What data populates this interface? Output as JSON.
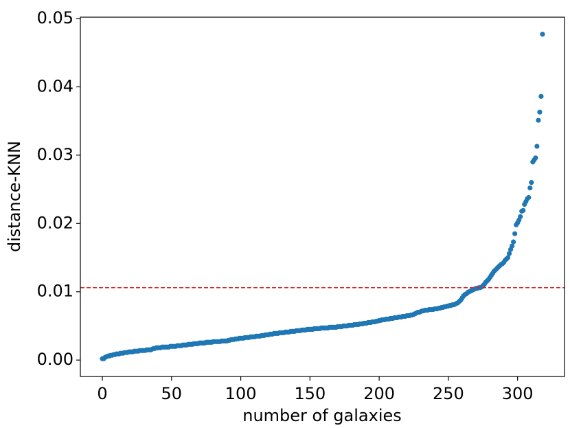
{
  "chart_data": {
    "type": "scatter",
    "xlabel": "number of galaxies",
    "ylabel": "distance-KNN",
    "xlim": [
      -15.9,
      333.9
    ],
    "ylim": [
      -0.0024,
      0.0502
    ],
    "xticks": [
      0,
      50,
      100,
      150,
      200,
      250,
      300
    ],
    "yticks": [
      {
        "value": 0,
        "label": "0.00"
      },
      0.01,
      0.02,
      0.03,
      0.04,
      0.05
    ],
    "hline": {
      "value": 0.0106,
      "color": "#d62728",
      "style": "dashed"
    },
    "series": [
      {
        "color": "#1f77b4",
        "x": [
          0,
          1,
          2,
          3,
          4,
          5,
          6,
          7,
          8,
          9,
          10,
          11,
          12,
          13,
          14,
          15,
          16,
          17,
          18,
          19,
          20,
          21,
          22,
          23,
          24,
          25,
          26,
          27,
          28,
          29,
          30,
          31,
          32,
          33,
          34,
          35,
          36,
          37,
          38,
          39,
          40,
          41,
          42,
          43,
          44,
          45,
          46,
          47,
          48,
          49,
          50,
          51,
          52,
          53,
          54,
          55,
          56,
          57,
          58,
          59,
          60,
          61,
          62,
          63,
          64,
          65,
          66,
          67,
          68,
          69,
          70,
          71,
          72,
          73,
          74,
          75,
          76,
          77,
          78,
          79,
          80,
          81,
          82,
          83,
          84,
          85,
          86,
          87,
          88,
          89,
          90,
          91,
          92,
          93,
          94,
          95,
          96,
          97,
          98,
          99,
          100,
          101,
          102,
          103,
          104,
          105,
          106,
          107,
          108,
          109,
          110,
          111,
          112,
          113,
          114,
          115,
          116,
          117,
          118,
          119,
          120,
          121,
          122,
          123,
          124,
          125,
          126,
          127,
          128,
          129,
          130,
          131,
          132,
          133,
          134,
          135,
          136,
          137,
          138,
          139,
          140,
          141,
          142,
          143,
          144,
          145,
          146,
          147,
          148,
          149,
          150,
          151,
          152,
          153,
          154,
          155,
          156,
          157,
          158,
          159,
          160,
          161,
          162,
          163,
          164,
          165,
          166,
          167,
          168,
          169,
          170,
          171,
          172,
          173,
          174,
          175,
          176,
          177,
          178,
          179,
          180,
          181,
          182,
          183,
          184,
          185,
          186,
          187,
          188,
          189,
          190,
          191,
          192,
          193,
          194,
          195,
          196,
          197,
          198,
          199,
          200,
          201,
          202,
          203,
          204,
          205,
          206,
          207,
          208,
          209,
          210,
          211,
          212,
          213,
          214,
          215,
          216,
          217,
          218,
          219,
          220,
          221,
          222,
          223,
          224,
          225,
          226,
          227,
          228,
          229,
          230,
          231,
          232,
          233,
          234,
          235,
          236,
          237,
          238,
          239,
          240,
          241,
          242,
          243,
          244,
          245,
          246,
          247,
          248,
          249,
          250,
          251,
          252,
          253,
          254,
          255,
          256,
          257,
          258,
          259,
          260,
          261,
          262,
          263,
          264,
          265,
          266,
          267,
          268,
          269,
          270,
          271,
          272,
          273,
          274,
          275,
          276,
          277,
          278,
          279,
          280,
          281,
          282,
          283,
          284,
          285,
          286,
          287,
          288,
          289,
          290,
          291,
          292,
          293,
          294,
          295,
          296,
          297,
          298,
          299,
          300,
          301,
          302,
          303,
          304,
          305,
          306,
          307,
          308,
          309,
          310,
          311,
          312,
          313,
          314,
          315,
          316,
          317,
          318
        ],
        "values": [
          0.0002,
          0.0002,
          0.0004,
          0.0005,
          0.0006,
          0.0006,
          0.0007,
          0.0007,
          0.0008,
          0.0008,
          0.0009,
          0.0009,
          0.0009,
          0.001,
          0.001,
          0.001,
          0.0011,
          0.0011,
          0.0011,
          0.0012,
          0.0012,
          0.0012,
          0.0012,
          0.0013,
          0.0013,
          0.0013,
          0.0013,
          0.0014,
          0.0014,
          0.0014,
          0.0014,
          0.0014,
          0.0015,
          0.0015,
          0.0015,
          0.0015,
          0.0016,
          0.0017,
          0.0017,
          0.0018,
          0.0018,
          0.0018,
          0.0018,
          0.0019,
          0.0019,
          0.0019,
          0.0019,
          0.0019,
          0.0019,
          0.002,
          0.002,
          0.002,
          0.002,
          0.002,
          0.0021,
          0.0021,
          0.0021,
          0.0021,
          0.0022,
          0.0022,
          0.0022,
          0.0022,
          0.0023,
          0.0023,
          0.0023,
          0.0023,
          0.0024,
          0.0024,
          0.0024,
          0.0024,
          0.0025,
          0.0025,
          0.0025,
          0.0025,
          0.0025,
          0.0026,
          0.0026,
          0.0026,
          0.0026,
          0.0026,
          0.0027,
          0.0027,
          0.0027,
          0.0027,
          0.0027,
          0.0027,
          0.0028,
          0.0028,
          0.0028,
          0.0028,
          0.0028,
          0.0029,
          0.0029,
          0.003,
          0.003,
          0.003,
          0.0031,
          0.0031,
          0.0031,
          0.0032,
          0.0032,
          0.0032,
          0.0032,
          0.0033,
          0.0033,
          0.0033,
          0.0033,
          0.0034,
          0.0034,
          0.0034,
          0.0034,
          0.0035,
          0.0035,
          0.0035,
          0.0035,
          0.0036,
          0.0036,
          0.0036,
          0.0037,
          0.0037,
          0.0037,
          0.0038,
          0.0038,
          0.0038,
          0.0039,
          0.0039,
          0.0039,
          0.0039,
          0.004,
          0.004,
          0.004,
          0.004,
          0.0041,
          0.0041,
          0.0041,
          0.0041,
          0.0042,
          0.0042,
          0.0042,
          0.0042,
          0.0043,
          0.0043,
          0.0043,
          0.0043,
          0.0044,
          0.0044,
          0.0044,
          0.0044,
          0.0045,
          0.0045,
          0.0045,
          0.0045,
          0.0045,
          0.0046,
          0.0046,
          0.0046,
          0.0046,
          0.0046,
          0.0047,
          0.0047,
          0.0047,
          0.0047,
          0.0047,
          0.0047,
          0.0048,
          0.0048,
          0.0048,
          0.0048,
          0.0048,
          0.0048,
          0.0049,
          0.0049,
          0.0049,
          0.0049,
          0.005,
          0.005,
          0.005,
          0.005,
          0.0051,
          0.0051,
          0.0051,
          0.0051,
          0.0052,
          0.0052,
          0.0052,
          0.0052,
          0.0053,
          0.0053,
          0.0053,
          0.0054,
          0.0054,
          0.0054,
          0.0055,
          0.0055,
          0.0055,
          0.0056,
          0.0056,
          0.0056,
          0.0057,
          0.0057,
          0.0058,
          0.0058,
          0.0059,
          0.0059,
          0.0059,
          0.006,
          0.006,
          0.006,
          0.0061,
          0.0061,
          0.0061,
          0.0062,
          0.0062,
          0.0062,
          0.0063,
          0.0063,
          0.0063,
          0.0064,
          0.0064,
          0.0064,
          0.0065,
          0.0065,
          0.0065,
          0.0066,
          0.0066,
          0.0067,
          0.0068,
          0.0069,
          0.007,
          0.007,
          0.0071,
          0.0072,
          0.0072,
          0.0073,
          0.0073,
          0.0073,
          0.0074,
          0.0074,
          0.0074,
          0.0074,
          0.0075,
          0.0075,
          0.0075,
          0.0076,
          0.0076,
          0.0077,
          0.0077,
          0.0078,
          0.0078,
          0.0079,
          0.0079,
          0.008,
          0.008,
          0.0081,
          0.0081,
          0.0082,
          0.0083,
          0.0084,
          0.0086,
          0.0088,
          0.0091,
          0.0094,
          0.0096,
          0.0097,
          0.0099,
          0.01,
          0.0101,
          0.0102,
          0.0103,
          0.0104,
          0.0105,
          0.0105,
          0.0106,
          0.0106,
          0.0107,
          0.0109,
          0.0111,
          0.0114,
          0.0116,
          0.0118,
          0.0121,
          0.0124,
          0.0127,
          0.013,
          0.0132,
          0.0134,
          0.0136,
          0.0138,
          0.014,
          0.0141,
          0.0143,
          0.0146,
          0.0148,
          0.015,
          0.0156,
          0.0162,
          0.0167,
          0.0173,
          0.0185,
          0.0198,
          0.0201,
          0.0205,
          0.021,
          0.0218,
          0.0219,
          0.0228,
          0.0232,
          0.0236,
          0.0238,
          0.0252,
          0.026,
          0.029,
          0.0293,
          0.0296,
          0.0313,
          0.0351,
          0.0363,
          0.0386,
          0.0477
        ]
      }
    ]
  }
}
